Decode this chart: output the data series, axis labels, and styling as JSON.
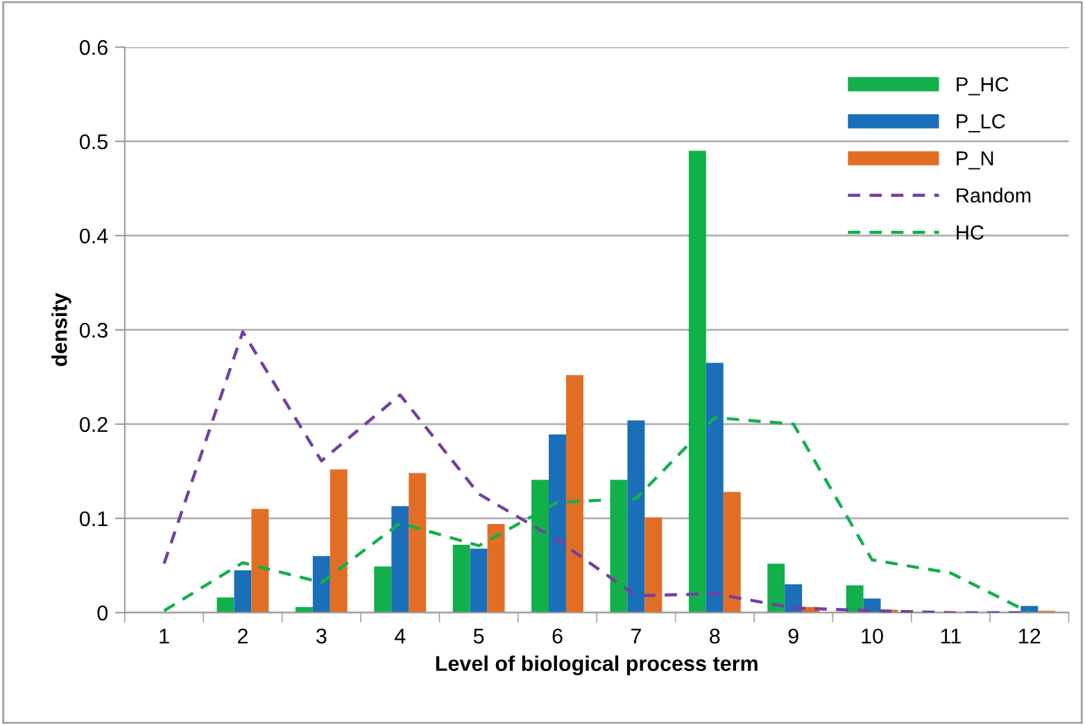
{
  "chart_data": {
    "type": "bar",
    "xlabel": "Level of biological process term",
    "ylabel": "density",
    "categories": [
      "1",
      "2",
      "3",
      "4",
      "5",
      "6",
      "7",
      "8",
      "9",
      "10",
      "11",
      "12"
    ],
    "series": [
      {
        "name": "P_HC",
        "color": "#12b04b",
        "values": [
          0,
          0.016,
          0.006,
          0.049,
          0.072,
          0.141,
          0.141,
          0.49,
          0.052,
          0.029,
          0,
          0
        ]
      },
      {
        "name": "P_LC",
        "color": "#1a6fb8",
        "values": [
          0,
          0.045,
          0.06,
          0.113,
          0.068,
          0.189,
          0.204,
          0.265,
          0.03,
          0.015,
          0,
          0.007
        ]
      },
      {
        "name": "P_N",
        "color": "#e26e26",
        "values": [
          0,
          0.11,
          0.152,
          0.148,
          0.094,
          0.252,
          0.101,
          0.128,
          0.006,
          0.003,
          0,
          0.002
        ]
      },
      {
        "name": "Random",
        "type": "line",
        "line_style": "dashed",
        "color": "#7340a0",
        "values": [
          0.052,
          0.298,
          0.161,
          0.231,
          0.126,
          0.077,
          0.018,
          0.02,
          0.005,
          0.002,
          0,
          0
        ]
      },
      {
        "name": "HC",
        "type": "line",
        "line_style": "dashed",
        "color": "#12b04b",
        "values": [
          0.002,
          0.053,
          0.032,
          0.095,
          0.071,
          0.117,
          0.121,
          0.207,
          0.2,
          0.056,
          0.042,
          0
        ]
      }
    ],
    "ylim": [
      0,
      0.6
    ],
    "yticks": [
      0,
      0.1,
      0.2,
      0.3,
      0.4,
      0.5,
      0.6
    ],
    "grid": "y",
    "legend": "top right"
  }
}
